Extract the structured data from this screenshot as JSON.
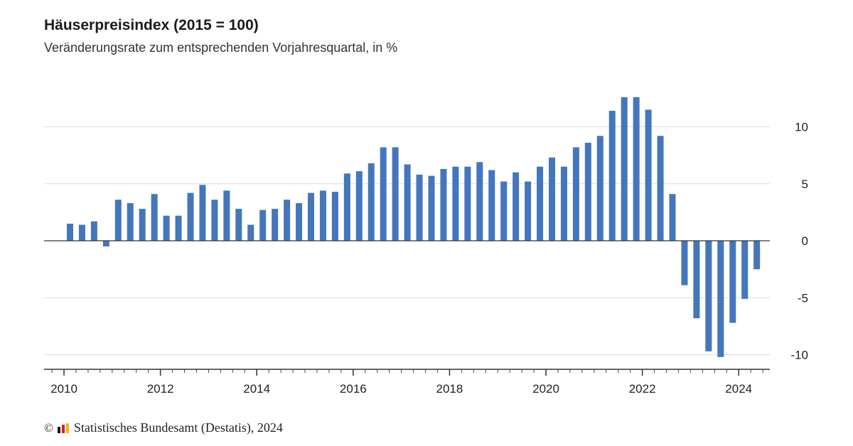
{
  "chart_data": {
    "type": "bar",
    "title": "Häuserpreisindex (2015 = 100)",
    "subtitle": "Veränderungsrate zum entsprechenden Vorjahresquartal, in %",
    "x_tick_labels": [
      "2010",
      "2012",
      "2014",
      "2016",
      "2018",
      "2020",
      "2022",
      "2024"
    ],
    "y_ticks": [
      10,
      5,
      0,
      -5,
      -10
    ],
    "y_tick_labels": [
      "10",
      "5",
      "0",
      "-5",
      "-10"
    ],
    "ylim": [
      -11.3,
      13.5
    ],
    "grid": true,
    "series_color": "#4476be",
    "categories": [
      "2010 Q1",
      "2010 Q2",
      "2010 Q3",
      "2010 Q4",
      "2011 Q1",
      "2011 Q2",
      "2011 Q3",
      "2011 Q4",
      "2012 Q1",
      "2012 Q2",
      "2012 Q3",
      "2012 Q4",
      "2013 Q1",
      "2013 Q2",
      "2013 Q3",
      "2013 Q4",
      "2014 Q1",
      "2014 Q2",
      "2014 Q3",
      "2014 Q4",
      "2015 Q1",
      "2015 Q2",
      "2015 Q3",
      "2015 Q4",
      "2016 Q1",
      "2016 Q2",
      "2016 Q3",
      "2016 Q4",
      "2017 Q1",
      "2017 Q2",
      "2017 Q3",
      "2017 Q4",
      "2018 Q1",
      "2018 Q2",
      "2018 Q3",
      "2018 Q4",
      "2019 Q1",
      "2019 Q2",
      "2019 Q3",
      "2019 Q4",
      "2020 Q1",
      "2020 Q2",
      "2020 Q3",
      "2020 Q4",
      "2021 Q1",
      "2021 Q2",
      "2021 Q3",
      "2021 Q4",
      "2022 Q1",
      "2022 Q2",
      "2022 Q3",
      "2022 Q4",
      "2023 Q1",
      "2023 Q2",
      "2023 Q3",
      "2023 Q4",
      "2024 Q1",
      "2024 Q2"
    ],
    "values": [
      1.5,
      1.4,
      1.7,
      -0.5,
      3.6,
      3.3,
      2.8,
      4.1,
      2.2,
      2.2,
      4.2,
      4.9,
      3.6,
      4.4,
      2.8,
      1.4,
      2.7,
      2.8,
      3.6,
      3.3,
      4.2,
      4.4,
      4.3,
      5.9,
      6.1,
      6.8,
      8.2,
      8.2,
      6.7,
      5.8,
      5.7,
      6.3,
      6.5,
      6.5,
      6.9,
      6.2,
      5.2,
      6.0,
      5.2,
      6.5,
      7.3,
      6.5,
      8.2,
      8.6,
      9.2,
      11.4,
      12.6,
      12.6,
      11.5,
      9.2,
      4.1,
      -3.9,
      -6.8,
      -9.7,
      -10.2,
      -7.2,
      -5.1,
      -2.5
    ]
  },
  "footer": {
    "copyright_symbol": "©",
    "logo_icon": "destatis-logo-icon",
    "logo_colors": [
      "#1a1a1a",
      "#d0202a",
      "#f2b500"
    ],
    "source_text": "Statistisches Bundesamt (Destatis), 2024"
  }
}
